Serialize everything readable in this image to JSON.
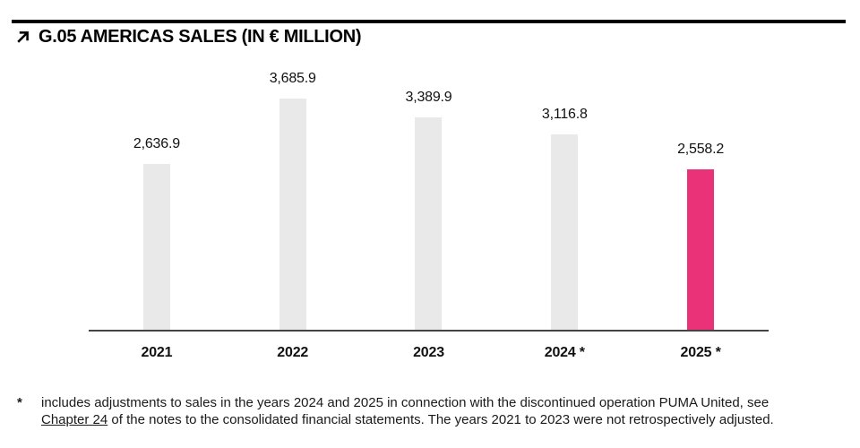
{
  "header": {
    "title": "G.05 AMERICAS SALES (IN € MILLION)",
    "arrow_icon": "arrow-up-right"
  },
  "chart_data": {
    "type": "bar",
    "title": "G.05 AMERICAS SALES (IN € MILLION)",
    "categories": [
      "2021",
      "2022",
      "2023",
      "2024 *",
      "2025 *"
    ],
    "values": [
      2636.9,
      3685.9,
      3389.9,
      3116.8,
      2558.2
    ],
    "value_labels": [
      "2,636.9",
      "3,685.9",
      "3,389.9",
      "3,116.8",
      "2,558.2"
    ],
    "ylim": [
      0,
      3700
    ],
    "xlabel": "",
    "ylabel": "",
    "grid": false,
    "legend": "none",
    "bar_colors": [
      "#E9E9E9",
      "#E9E9E9",
      "#E9E9E9",
      "#E9E9E9",
      "#E93278"
    ],
    "colors": {
      "bar_default": "#E9E9E9",
      "bar_highlight": "#E93278",
      "axis_line": "#444444",
      "text": "#111111"
    }
  },
  "footnote": {
    "marker": "*",
    "line1": "includes adjustments to sales in the years 2024 and 2025 in connection with the discontinued operation PUMA United, see",
    "link_text": "Chapter 24",
    "line2_rest": " of the notes to the consolidated financial statements. The years 2021 to 2023 were not retrospectively adjusted."
  }
}
